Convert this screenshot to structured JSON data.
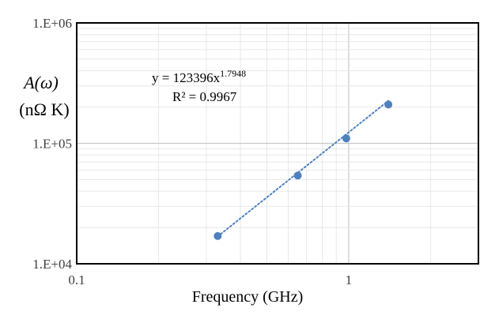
{
  "chart_data": {
    "type": "scatter",
    "x_scale": "log",
    "y_scale": "log",
    "xlim": [
      0.1,
      3.0
    ],
    "ylim": [
      10000,
      1000000
    ],
    "x_ticks": [
      0.1,
      1
    ],
    "x_tick_labels": [
      "0.1",
      "1"
    ],
    "y_ticks": [
      10000,
      100000,
      1000000
    ],
    "y_tick_labels": [
      "1.E+04",
      "1.E+05",
      "1.E+06"
    ],
    "xlabel": "Frequency  (GHz)",
    "ylabel_line1": "A(ω)",
    "ylabel_line2": "(nΩ K)",
    "grid": true,
    "points": [
      {
        "x": 0.33,
        "y": 17000
      },
      {
        "x": 0.65,
        "y": 54000
      },
      {
        "x": 0.98,
        "y": 110000
      },
      {
        "x": 1.4,
        "y": 210000
      }
    ],
    "trendline": {
      "type": "power",
      "coefficient": 123396,
      "exponent": 1.7948,
      "x_range": [
        0.33,
        1.4
      ],
      "equation_prefix": "y = 123396x",
      "equation_exponent": "1.7948",
      "r_squared_label": "R² = 0.9967"
    },
    "colors": {
      "points": "#4f81bd",
      "trendline": "#4f81bd",
      "major_grid": "#c8c8c8",
      "minor_grid": "#e8e8e8",
      "frame": "#000000"
    }
  }
}
